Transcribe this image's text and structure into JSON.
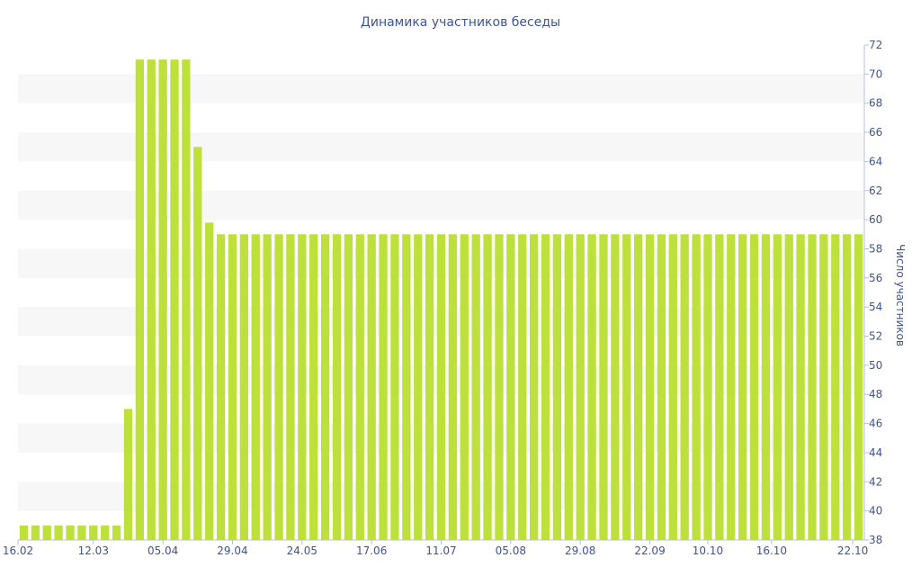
{
  "chart_data": {
    "type": "bar",
    "title": "Динамика участников беседы",
    "ylabel": "Число участников",
    "xlabel": "",
    "ylim": [
      38,
      72
    ],
    "y_axis_side": "right",
    "grid": "alternating horizontal bands",
    "y_ticks": [
      38,
      40,
      42,
      44,
      46,
      48,
      50,
      52,
      54,
      56,
      58,
      60,
      62,
      64,
      66,
      68,
      70,
      72
    ],
    "x_tick_labels": [
      "16.02",
      "12.03",
      "05.04",
      "29.04",
      "24.05",
      "17.06",
      "11.07",
      "05.08",
      "29.08",
      "22.09",
      "10.10",
      "16.10",
      "22.10"
    ],
    "x_tick_positions": [
      0,
      6.5,
      12.5,
      18.5,
      24.5,
      30.5,
      36.5,
      42.5,
      48.5,
      54.5,
      59.5,
      65,
      72
    ],
    "values": [
      39,
      39,
      39,
      39,
      39,
      39,
      39,
      39,
      39,
      47,
      71,
      71,
      71,
      71,
      71,
      65,
      59.8,
      59,
      59,
      59,
      59,
      59,
      59,
      59,
      59,
      59,
      59,
      59,
      59,
      59,
      59,
      59,
      59,
      59,
      59,
      59,
      59,
      59,
      59,
      59,
      59,
      59,
      59,
      59,
      59,
      59,
      59,
      59,
      59,
      59,
      59,
      59,
      59,
      59,
      59,
      59,
      59,
      59,
      59,
      59,
      59,
      59,
      59,
      59,
      59,
      59,
      59,
      59,
      59,
      59,
      59,
      59,
      59
    ],
    "bar_color": "#bde03a",
    "band_color": "#f7f7f7",
    "text_color": "#3e5495"
  }
}
